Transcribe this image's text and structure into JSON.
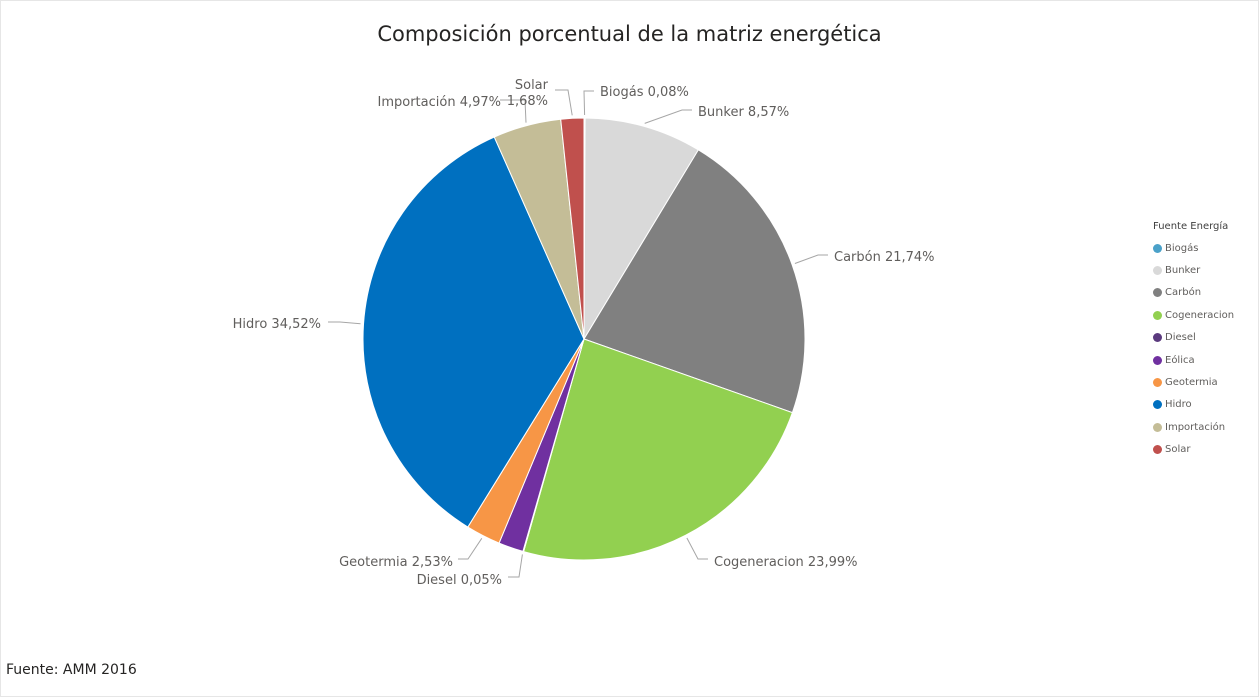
{
  "chart_data": {
    "type": "pie",
    "title": "Composición porcentual de la matriz energética",
    "legend_title": "Fuente Energía",
    "legend_position": "right",
    "slices": [
      {
        "name": "Biogás",
        "value": 0.08,
        "label": "Biogás 0,08%",
        "color": "#4AA1C9"
      },
      {
        "name": "Bunker",
        "value": 8.57,
        "label": "Bunker 8,57%",
        "color": "#D9D9D9"
      },
      {
        "name": "Carbón",
        "value": 21.74,
        "label": "Carbón 21,74%",
        "color": "#808080"
      },
      {
        "name": "Cogeneracion",
        "value": 23.99,
        "label": "Cogeneracion 23,99%",
        "color": "#92D050"
      },
      {
        "name": "Diesel",
        "value": 0.05,
        "label": "Diesel 0,05%",
        "color": "#5B3A7E"
      },
      {
        "name": "Eólica",
        "value": 1.82,
        "label": "",
        "color": "#7030A0"
      },
      {
        "name": "Geotermia",
        "value": 2.53,
        "label": "Geotermia 2,53%",
        "color": "#F79646"
      },
      {
        "name": "Hidro",
        "value": 34.52,
        "label": "Hidro 34,52%",
        "color": "#0070C0"
      },
      {
        "name": "Importación",
        "value": 4.97,
        "label": "Importación 4,97%",
        "color": "#C4BD97"
      },
      {
        "name": "Solar",
        "value": 1.68,
        "label": "Solar 1,68%",
        "label_lines": [
          "Solar",
          "1,68%"
        ],
        "color": "#C0504D"
      }
    ]
  },
  "footer": {
    "source": "Fuente: AMM 2016"
  }
}
